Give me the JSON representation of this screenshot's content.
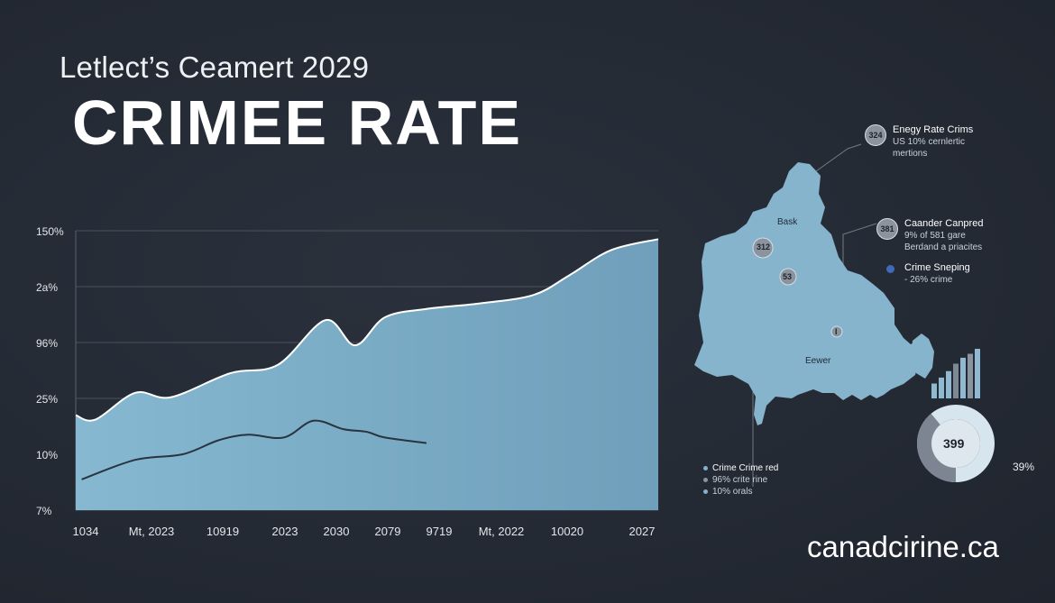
{
  "header": {
    "subtitle": "Letlect’s Ceamert 2029",
    "title": "CRIMEE RATE"
  },
  "chart_data": {
    "type": "area",
    "title": "CRIMEE RATE",
    "subtitle": "Letlect’s Ceamert 2029",
    "xlabel": "",
    "ylabel": "",
    "x_ticks": [
      "1034",
      "Mt, 2023",
      "10919",
      "2023",
      "2030",
      "2079",
      "9719",
      "Mt, 2022",
      "10020",
      "2027"
    ],
    "y_ticks": [
      "7%",
      "10%",
      "25%",
      "96%",
      "2a%",
      "150%"
    ],
    "y_scale": [
      0,
      5
    ],
    "grid": true,
    "series": [
      {
        "style": "area",
        "color": "#7fb1cb",
        "x": [
          0,
          0.33,
          1.0,
          1.6,
          2.6,
          3.4,
          4.2,
          4.7,
          5.2,
          5.9,
          6.8,
          7.7,
          8.3,
          9.0,
          9.8
        ],
        "y": [
          1.7,
          1.62,
          2.1,
          2.02,
          2.45,
          2.6,
          3.4,
          2.95,
          3.45,
          3.6,
          3.7,
          3.85,
          4.2,
          4.65,
          4.85
        ]
      },
      {
        "style": "line",
        "color": "#2a3340",
        "x": [
          0.1,
          1.0,
          1.8,
          2.4,
          2.9,
          3.5,
          4.0,
          4.5,
          4.9,
          5.2,
          5.9
        ],
        "y": [
          0.55,
          0.9,
          1.0,
          1.25,
          1.35,
          1.3,
          1.6,
          1.45,
          1.4,
          1.3,
          1.2
        ]
      }
    ]
  },
  "map_panel": {
    "annotations": [
      {
        "badge": "324",
        "title": "Enegy Rate Crims",
        "lines": [
          "US 10% cernlertic",
          "mertions"
        ]
      },
      {
        "badge": "381",
        "title": "Caander Canpred",
        "lines": [
          "9% of 581 gare",
          "Berdand a priacites"
        ]
      },
      {
        "title": "Crime Sneping",
        "lines": [
          "- 26% crime"
        ]
      }
    ],
    "map_badges": [
      "312",
      "53",
      "I"
    ],
    "map_labels": [
      "Bask",
      "Eewer"
    ],
    "legend": [
      "Crime Crime red",
      "96% crite rine",
      "10% orals"
    ],
    "bars": [
      0.3,
      0.42,
      0.55,
      0.7,
      0.82,
      0.9,
      1.0
    ],
    "bar_colors": [
      "#8fb9d0",
      "#8fb9d0",
      "#8fb9d0",
      "#7e8894",
      "#8fb9d0",
      "#8a939e",
      "#8fb9d0"
    ],
    "donut": {
      "center_label": "399",
      "percent_label": "39%",
      "fraction": 0.39
    }
  },
  "watermark": "canadcirine.ca",
  "colors": {
    "background": "#262c36",
    "area_fill": "#7fb1cb",
    "map_fill": "#86b4cc",
    "accent_dot": "#3f6ab8"
  }
}
